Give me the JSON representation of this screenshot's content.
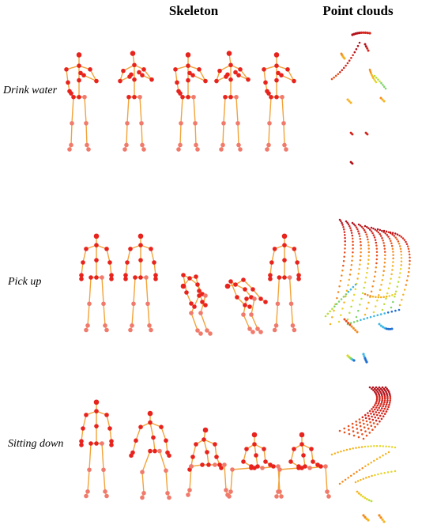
{
  "headers": {
    "skeleton": "Skeleton",
    "point_clouds": "Point clouds"
  },
  "rows": [
    {
      "label": "Drink water"
    },
    {
      "label": "Pick up"
    },
    {
      "label": "Sitting down"
    }
  ],
  "colors": {
    "bone": "#f2a33a",
    "joint_upper": "#e8231d",
    "joint_lower": "#f07a6c",
    "background": "#ffffff"
  }
}
